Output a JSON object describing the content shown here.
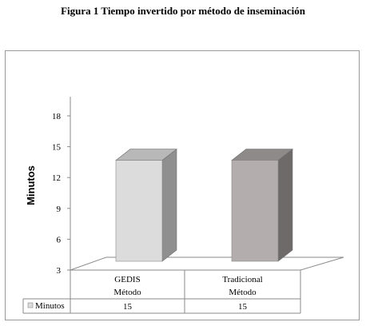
{
  "figure": {
    "title": "Figura 1 Tiempo invertido por método de inseminación"
  },
  "chart_data": {
    "type": "bar",
    "style": "3d-column-with-data-table",
    "categories": [
      "GEDIS",
      "Tradicional"
    ],
    "category_axis_title": "Método",
    "series": [
      {
        "name": "Minutos",
        "values": [
          15,
          15
        ],
        "colors": [
          "#dcdcdc",
          "#b3adad"
        ]
      }
    ],
    "ylabel": "Minutos",
    "ylim": [
      3,
      18
    ],
    "yticks": [
      3,
      6,
      9,
      12,
      15,
      18
    ],
    "grid": false,
    "legend": "data-table-row",
    "data_table": {
      "rows": [
        {
          "label": "Minutos",
          "values": [
            "15",
            "15"
          ]
        }
      ]
    }
  }
}
